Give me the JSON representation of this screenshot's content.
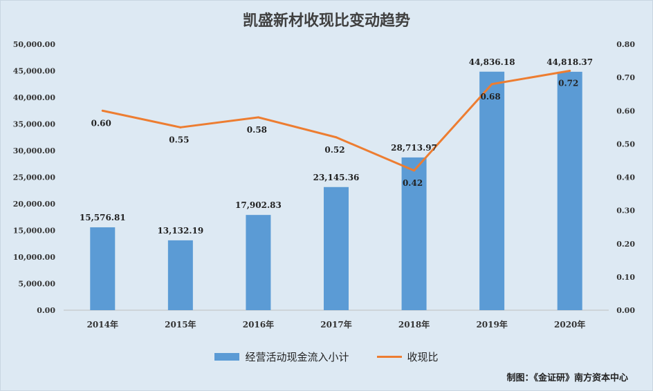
{
  "chart_data": {
    "type": "bar",
    "title": "凯盛新材收现比变动趋势",
    "categories": [
      "2014年",
      "2015年",
      "2016年",
      "2017年",
      "2018年",
      "2019年",
      "2020年"
    ],
    "series": [
      {
        "name": "经营活动现金流入小计",
        "type": "bar",
        "axis": "left",
        "color": "#5b9bd5",
        "values": [
          15576.81,
          13132.19,
          17902.83,
          23145.36,
          28713.97,
          44836.18,
          44818.37
        ],
        "labels": [
          "15,576.81",
          "13,132.19",
          "17,902.83",
          "23,145.36",
          "28,713.97",
          "44,836.18",
          "44,818.37"
        ]
      },
      {
        "name": "收现比",
        "type": "line",
        "axis": "right",
        "color": "#ed7d31",
        "values": [
          0.6,
          0.55,
          0.58,
          0.52,
          0.42,
          0.68,
          0.72
        ],
        "labels": [
          "0.60",
          "0.55",
          "0.58",
          "0.52",
          "0.42",
          "0.68",
          "0.72"
        ]
      }
    ],
    "y_left": {
      "min": 0,
      "max": 50000,
      "ticks": [
        "0.00",
        "5,000.00",
        "10,000.00",
        "15,000.00",
        "20,000.00",
        "25,000.00",
        "30,000.00",
        "35,000.00",
        "40,000.00",
        "45,000.00",
        "50,000.00"
      ]
    },
    "y_right": {
      "min": 0,
      "max": 0.8,
      "ticks": [
        "0.00",
        "0.10",
        "0.20",
        "0.30",
        "0.40",
        "0.50",
        "0.60",
        "0.70",
        "0.80"
      ]
    },
    "grid": false,
    "legend_position": "bottom"
  },
  "credit": "制图：《金证研》南方资本中心"
}
